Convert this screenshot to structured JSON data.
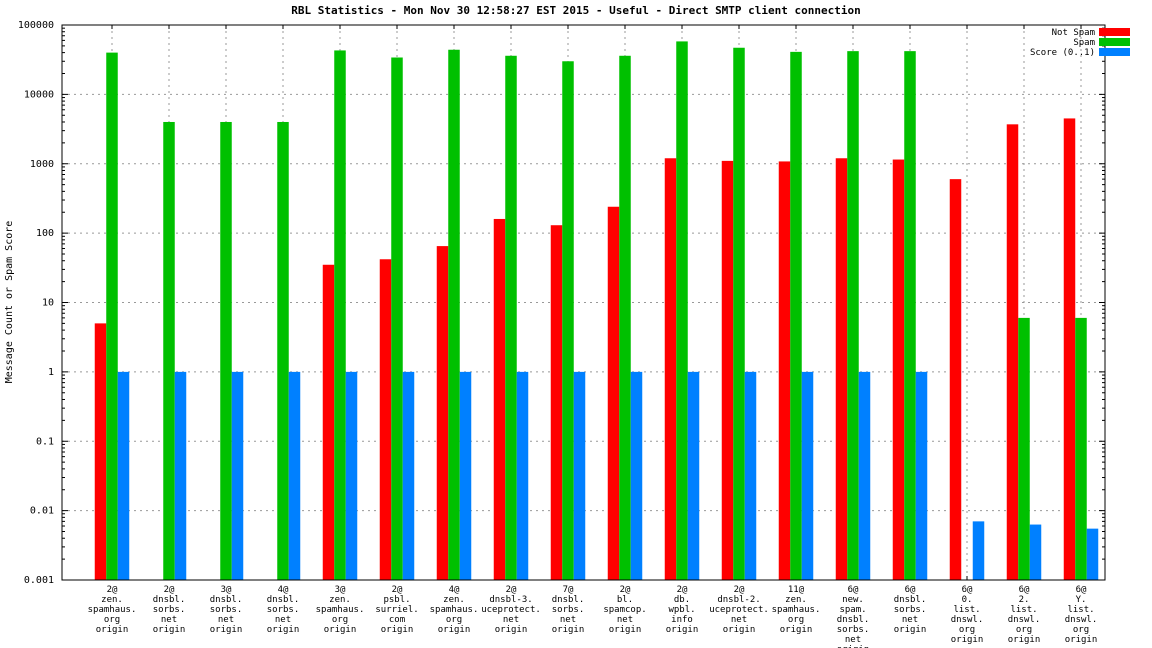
{
  "chart_data": {
    "type": "bar",
    "title": "RBL Statistics - Mon Nov 30 12:58:27 EST 2015 - Useful - Direct SMTP client connection",
    "ylabel": "Message Count or Spam Score",
    "xlabel": "",
    "yscale": "log",
    "ylim": [
      0.001,
      100000
    ],
    "ytick_labels": [
      "100000",
      "10000",
      "1000",
      "100",
      "10",
      "1",
      "0.1",
      "0.01",
      "0.001"
    ],
    "grid": true,
    "legend_position": "top-right",
    "colors": {
      "not_spam": "#ff0000",
      "spam": "#00c000",
      "score": "#0080ff",
      "grid": "#999999",
      "axis": "#000000",
      "background": "#ffffff"
    },
    "categories": [
      {
        "lines": [
          "2@",
          "zen.",
          "spamhaus.",
          "org",
          "origin"
        ]
      },
      {
        "lines": [
          "2@",
          "dnsbl.",
          "sorbs.",
          "net",
          "origin"
        ]
      },
      {
        "lines": [
          "3@",
          "dnsbl.",
          "sorbs.",
          "net",
          "origin"
        ]
      },
      {
        "lines": [
          "4@",
          "dnsbl.",
          "sorbs.",
          "net",
          "origin"
        ]
      },
      {
        "lines": [
          "3@",
          "zen.",
          "spamhaus.",
          "org",
          "origin"
        ]
      },
      {
        "lines": [
          "2@",
          "psbl.",
          "surriel.",
          "com",
          "origin"
        ]
      },
      {
        "lines": [
          "4@",
          "zen.",
          "spamhaus.",
          "org",
          "origin"
        ]
      },
      {
        "lines": [
          "2@",
          "dnsbl-3.",
          "uceprotect.",
          "net",
          "origin"
        ]
      },
      {
        "lines": [
          "7@",
          "dnsbl.",
          "sorbs.",
          "net",
          "origin"
        ]
      },
      {
        "lines": [
          "2@",
          "bl.",
          "spamcop.",
          "net",
          "origin"
        ]
      },
      {
        "lines": [
          "2@",
          "db.",
          "wpbl.",
          "info",
          "origin"
        ]
      },
      {
        "lines": [
          "2@",
          "dnsbl-2.",
          "uceprotect.",
          "net",
          "origin"
        ]
      },
      {
        "lines": [
          "11@",
          "zen.",
          "spamhaus.",
          "org",
          "origin"
        ]
      },
      {
        "lines": [
          "6@",
          "new.",
          "spam.",
          "dnsbl.",
          "sorbs.",
          "net",
          "origin"
        ]
      },
      {
        "lines": [
          "6@",
          "dnsbl.",
          "sorbs.",
          "net",
          "origin"
        ]
      },
      {
        "lines": [
          "6@",
          "0.",
          "list.",
          "dnswl.",
          "org",
          "origin"
        ]
      },
      {
        "lines": [
          "6@",
          "2.",
          "list.",
          "dnswl.",
          "org",
          "origin"
        ]
      },
      {
        "lines": [
          "6@",
          "Y.",
          "list.",
          "dnswl.",
          "org",
          "origin"
        ]
      }
    ],
    "series": [
      {
        "name": "Not Spam",
        "color_key": "not_spam",
        "values": [
          5,
          null,
          null,
          null,
          35,
          42,
          65,
          160,
          130,
          240,
          1200,
          1100,
          1080,
          1200,
          1150,
          600,
          3700,
          4500
        ]
      },
      {
        "name": "Spam",
        "color_key": "spam",
        "values": [
          40000,
          4000,
          4000,
          4000,
          43000,
          34000,
          44000,
          36000,
          30000,
          36000,
          58000,
          47000,
          41000,
          42000,
          42000,
          null,
          6,
          6
        ]
      },
      {
        "name": "Score (0..1)",
        "color_key": "score",
        "values": [
          1,
          1,
          1,
          1,
          1,
          1,
          1,
          1,
          1,
          1,
          1,
          1,
          1,
          1,
          1,
          0.007,
          0.0063,
          0.0055
        ]
      }
    ]
  }
}
